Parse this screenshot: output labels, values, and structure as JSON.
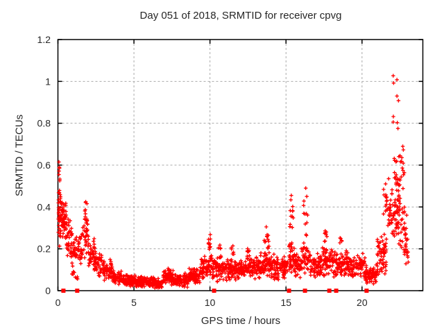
{
  "chart_data": {
    "type": "scatter",
    "title": "Day 051 of 2018, SRMTID for receiver cpvg",
    "xlabel": "GPS time / hours",
    "ylabel": "SRMTID / TECUs",
    "xlim": [
      0,
      24
    ],
    "ylim": [
      0,
      1.2
    ],
    "xtick_values": [
      0,
      5,
      10,
      15,
      20
    ],
    "xtick_labels": [
      "0",
      "5",
      "10",
      "15",
      "20"
    ],
    "ytick_values": [
      0,
      0.2,
      0.4,
      0.6,
      0.8,
      1,
      1.2
    ],
    "ytick_labels": [
      "0",
      "0.2",
      "0.4",
      "0.6",
      "0.8",
      "1",
      "1.2"
    ],
    "grid": true,
    "legend": "none",
    "marker": "plus",
    "marker_color": "#ff0000",
    "grid_color": "#aaaaaa",
    "border_color": "#000000",
    "seed": 2018051,
    "band_segments": [
      {
        "x0": 0.02,
        "x1": 0.18,
        "n": 30,
        "lo": 0.18,
        "hi": 0.62
      },
      {
        "x0": 0.05,
        "x1": 0.35,
        "n": 35,
        "lo": 0.22,
        "hi": 0.47
      },
      {
        "x0": 0.3,
        "x1": 0.6,
        "n": 35,
        "lo": 0.2,
        "hi": 0.44
      },
      {
        "x0": 0.55,
        "x1": 0.9,
        "n": 30,
        "lo": 0.15,
        "hi": 0.36
      },
      {
        "x0": 0.85,
        "x1": 1.25,
        "n": 30,
        "lo": 0.08,
        "hi": 0.28
      },
      {
        "x0": 0.9,
        "x1": 1.3,
        "n": 8,
        "lo": 0.04,
        "hi": 0.1
      },
      {
        "x0": 1.25,
        "x1": 1.6,
        "n": 25,
        "lo": 0.1,
        "hi": 0.3
      },
      {
        "x0": 1.6,
        "x1": 2.0,
        "n": 30,
        "lo": 0.12,
        "hi": 0.38
      },
      {
        "x0": 1.7,
        "x1": 1.95,
        "n": 12,
        "lo": 0.3,
        "hi": 0.47
      },
      {
        "x0": 2.0,
        "x1": 2.45,
        "n": 40,
        "lo": 0.08,
        "hi": 0.26
      },
      {
        "x0": 2.4,
        "x1": 3.0,
        "n": 45,
        "lo": 0.06,
        "hi": 0.2
      },
      {
        "x0": 3.0,
        "x1": 3.6,
        "n": 50,
        "lo": 0.04,
        "hi": 0.16
      },
      {
        "x0": 3.6,
        "x1": 4.2,
        "n": 55,
        "lo": 0.025,
        "hi": 0.1
      },
      {
        "x0": 4.2,
        "x1": 5.2,
        "n": 90,
        "lo": 0.015,
        "hi": 0.08
      },
      {
        "x0": 5.2,
        "x1": 6.3,
        "n": 100,
        "lo": 0.01,
        "hi": 0.07
      },
      {
        "x0": 6.3,
        "x1": 6.9,
        "n": 55,
        "lo": 0.01,
        "hi": 0.06
      },
      {
        "x0": 6.9,
        "x1": 7.6,
        "n": 70,
        "lo": 0.025,
        "hi": 0.11
      },
      {
        "x0": 7.6,
        "x1": 8.6,
        "n": 85,
        "lo": 0.015,
        "hi": 0.085
      },
      {
        "x0": 8.6,
        "x1": 9.4,
        "n": 75,
        "lo": 0.03,
        "hi": 0.12
      },
      {
        "x0": 9.4,
        "x1": 10.0,
        "n": 60,
        "lo": 0.05,
        "hi": 0.17
      },
      {
        "x0": 9.9,
        "x1": 10.15,
        "n": 10,
        "lo": 0.17,
        "hi": 0.27
      },
      {
        "x0": 10.0,
        "x1": 10.8,
        "n": 70,
        "lo": 0.04,
        "hi": 0.18
      },
      {
        "x0": 10.5,
        "x1": 10.7,
        "n": 6,
        "lo": 0.18,
        "hi": 0.23
      },
      {
        "x0": 10.8,
        "x1": 12.0,
        "n": 100,
        "lo": 0.04,
        "hi": 0.16
      },
      {
        "x0": 11.4,
        "x1": 11.6,
        "n": 6,
        "lo": 0.16,
        "hi": 0.22
      },
      {
        "x0": 12.0,
        "x1": 13.3,
        "n": 110,
        "lo": 0.05,
        "hi": 0.17
      },
      {
        "x0": 12.4,
        "x1": 12.6,
        "n": 5,
        "lo": 0.17,
        "hi": 0.21
      },
      {
        "x0": 13.3,
        "x1": 14.1,
        "n": 80,
        "lo": 0.05,
        "hi": 0.19
      },
      {
        "x0": 13.55,
        "x1": 13.9,
        "n": 12,
        "lo": 0.19,
        "hi": 0.31
      },
      {
        "x0": 14.1,
        "x1": 15.1,
        "n": 85,
        "lo": 0.05,
        "hi": 0.18
      },
      {
        "x0": 15.1,
        "x1": 15.6,
        "n": 45,
        "lo": 0.06,
        "hi": 0.24
      },
      {
        "x0": 15.25,
        "x1": 15.5,
        "n": 11,
        "lo": 0.25,
        "hi": 0.455
      },
      {
        "x0": 15.6,
        "x1": 16.0,
        "n": 38,
        "lo": 0.05,
        "hi": 0.18
      },
      {
        "x0": 16.0,
        "x1": 16.6,
        "n": 45,
        "lo": 0.06,
        "hi": 0.24
      },
      {
        "x0": 16.15,
        "x1": 16.45,
        "n": 11,
        "lo": 0.25,
        "hi": 0.49
      },
      {
        "x0": 16.6,
        "x1": 17.4,
        "n": 65,
        "lo": 0.05,
        "hi": 0.18
      },
      {
        "x0": 17.4,
        "x1": 18.1,
        "n": 60,
        "lo": 0.06,
        "hi": 0.22
      },
      {
        "x0": 17.45,
        "x1": 17.7,
        "n": 8,
        "lo": 0.22,
        "hi": 0.31
      },
      {
        "x0": 18.1,
        "x1": 19.2,
        "n": 95,
        "lo": 0.05,
        "hi": 0.2
      },
      {
        "x0": 18.5,
        "x1": 18.7,
        "n": 5,
        "lo": 0.2,
        "hi": 0.26
      },
      {
        "x0": 19.2,
        "x1": 20.2,
        "n": 85,
        "lo": 0.05,
        "hi": 0.18
      },
      {
        "x0": 20.2,
        "x1": 21.0,
        "n": 75,
        "lo": 0.03,
        "hi": 0.13
      },
      {
        "x0": 21.0,
        "x1": 21.6,
        "n": 55,
        "lo": 0.05,
        "hi": 0.27
      },
      {
        "x0": 21.4,
        "x1": 22.0,
        "n": 35,
        "lo": 0.25,
        "hi": 0.55
      },
      {
        "x0": 21.9,
        "x1": 22.5,
        "n": 40,
        "lo": 0.2,
        "hi": 0.45
      },
      {
        "x0": 22.1,
        "x1": 22.8,
        "n": 45,
        "lo": 0.35,
        "hi": 0.66
      },
      {
        "x0": 22.4,
        "x1": 22.95,
        "n": 30,
        "lo": 0.15,
        "hi": 0.42
      },
      {
        "x0": 22.85,
        "x1": 23.05,
        "n": 12,
        "lo": 0.1,
        "hi": 0.3
      }
    ],
    "outlier_points": [
      [
        0.07,
        0.615
      ],
      [
        0.1,
        0.585
      ],
      [
        0.07,
        0.555
      ],
      [
        0.12,
        0.525
      ],
      [
        10.02,
        0.268
      ],
      [
        13.7,
        0.305
      ],
      [
        15.35,
        0.455
      ],
      [
        16.3,
        0.49
      ],
      [
        21.55,
        0.51
      ],
      [
        21.75,
        0.535
      ],
      [
        22.05,
        1.027
      ],
      [
        22.3,
        1.008
      ],
      [
        22.08,
        0.992
      ],
      [
        22.3,
        0.93
      ],
      [
        22.4,
        0.908
      ],
      [
        22.06,
        0.832
      ],
      [
        22.05,
        0.806
      ],
      [
        22.32,
        0.803
      ],
      [
        22.36,
        0.775
      ],
      [
        22.68,
        0.69
      ],
      [
        22.72,
        0.673
      ],
      [
        22.5,
        0.645
      ],
      [
        22.6,
        0.618
      ]
    ],
    "zero_markers": [
      0.36,
      1.27,
      10.27,
      15.2,
      16.25,
      17.85,
      18.3,
      20.3
    ]
  }
}
